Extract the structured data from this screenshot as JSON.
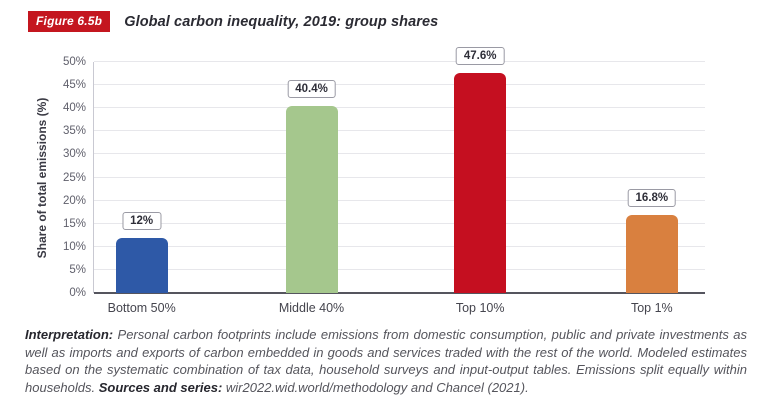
{
  "figure_label": "Figure 6.5b",
  "title": "Global carbon inequality, 2019: group shares",
  "chart_data": {
    "type": "bar",
    "categories": [
      "Bottom 50%",
      "Middle 40%",
      "Top 10%",
      "Top 1%"
    ],
    "values": [
      12,
      40.4,
      47.6,
      16.8
    ],
    "value_labels": [
      "12%",
      "40.4%",
      "47.6%",
      "16.8%"
    ],
    "bar_colors": [
      "#2e59a7",
      "#a5c78d",
      "#c50f20",
      "#d9803f"
    ],
    "bar_centers_pct": [
      7.8,
      35.6,
      63.2,
      91.3
    ],
    "title": "Global carbon inequality, 2019: group shares",
    "xlabel": "",
    "ylabel": "Share of total emissions (%)",
    "ylim": [
      0,
      50
    ],
    "ytick_step": 5,
    "ytick_labels": [
      "0%",
      "5%",
      "10%",
      "15%",
      "20%",
      "25%",
      "30%",
      "35%",
      "40%",
      "45%",
      "50%"
    ],
    "grid": true,
    "legend": "none"
  },
  "footer": {
    "interpretation_label": "Interpretation:",
    "interpretation_text": " Personal carbon footprints include emissions from domestic consumption, public and private investments as well as imports and exports of carbon embedded in goods and services traded with the rest of the world. Modeled estimates based on the systematic combination of tax data, household surveys and input-output tables. Emissions split equally within households. ",
    "sources_label": "Sources and series:",
    "sources_text": " wir2022.wid.world/methodology and Chancel (2021)."
  },
  "colors": {
    "badge_background": "#c4161f",
    "badge_text": "#ffffff",
    "axis_line": "#55555e",
    "gridline": "#e7e7eb"
  }
}
